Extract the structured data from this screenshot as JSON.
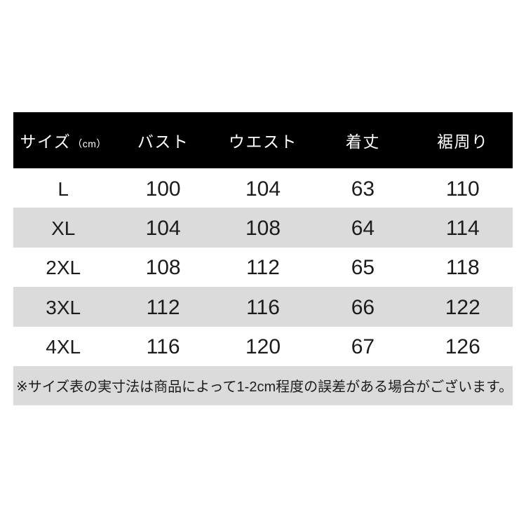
{
  "table": {
    "header": [
      {
        "label": "サイズ",
        "unit": "（cm）"
      },
      {
        "label": "バスト"
      },
      {
        "label": "ウエスト"
      },
      {
        "label": "着丈"
      },
      {
        "label": "裾周り"
      }
    ],
    "rows": [
      [
        "L",
        "100",
        "104",
        "63",
        "110"
      ],
      [
        "XL",
        "104",
        "108",
        "64",
        "114"
      ],
      [
        "2XL",
        "108",
        "112",
        "65",
        "118"
      ],
      [
        "3XL",
        "112",
        "116",
        "66",
        "122"
      ],
      [
        "4XL",
        "116",
        "120",
        "67",
        "126"
      ]
    ],
    "note": "※サイズ表の実寸法は商品によって1-2cm程度の誤差がある場合がございます。"
  },
  "colors": {
    "page_bg": "#ffffff",
    "header_bg": "#000000",
    "header_text": "#ffffff",
    "row_bg": "#ffffff",
    "row_alt_bg": "#dbdbdb",
    "note_bg": "#dbdbdb",
    "text": "#1c1c1c"
  }
}
